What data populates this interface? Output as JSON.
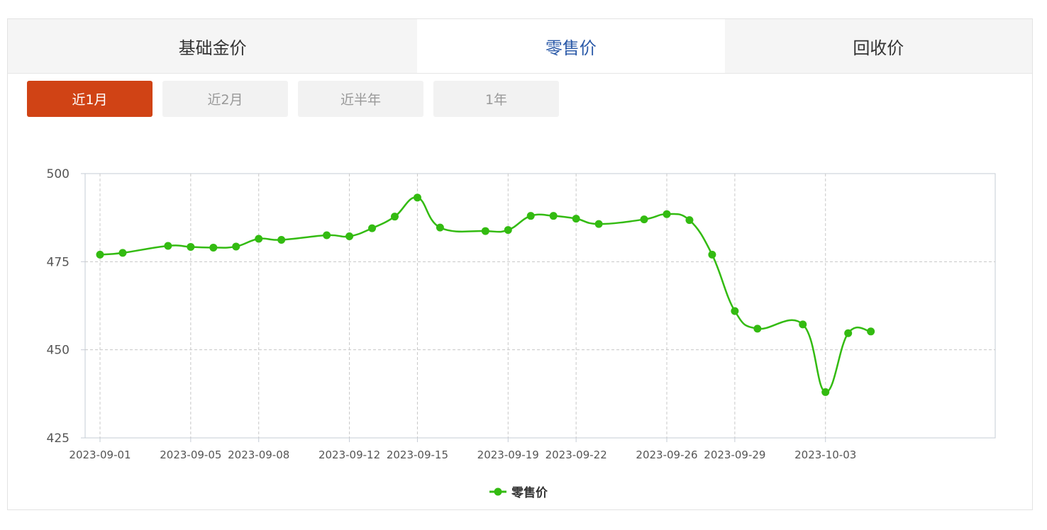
{
  "tabs": [
    {
      "label": "基础金价",
      "active": false
    },
    {
      "label": "零售价",
      "active": true
    },
    {
      "label": "回收价",
      "active": false
    }
  ],
  "ranges": [
    {
      "label": "近1月",
      "active": true
    },
    {
      "label": "近2月",
      "active": false
    },
    {
      "label": "近半年",
      "active": false
    },
    {
      "label": "1年",
      "active": false
    }
  ],
  "colors": {
    "series": "#33bb11",
    "active_range": "#d04315",
    "active_tab_text": "#2b5aa8"
  },
  "chart_data": {
    "type": "line",
    "title": "",
    "xlabel": "",
    "ylabel": "",
    "ylim": [
      425,
      500
    ],
    "yticks": [
      425,
      450,
      475,
      500
    ],
    "xticks": [
      "2023-09-01",
      "2023-09-05",
      "2023-09-08",
      "2023-09-12",
      "2023-09-15",
      "2023-09-19",
      "2023-09-22",
      "2023-09-26",
      "2023-09-29",
      "2023-10-03"
    ],
    "grid": true,
    "legend": "bottom-center",
    "x": [
      "2023-09-01",
      "2023-09-02",
      "2023-09-04",
      "2023-09-05",
      "2023-09-06",
      "2023-09-07",
      "2023-09-08",
      "2023-09-09",
      "2023-09-11",
      "2023-09-12",
      "2023-09-13",
      "2023-09-14",
      "2023-09-15",
      "2023-09-16",
      "2023-09-18",
      "2023-09-19",
      "2023-09-20",
      "2023-09-21",
      "2023-09-22",
      "2023-09-23",
      "2023-09-25",
      "2023-09-26",
      "2023-09-27",
      "2023-09-28",
      "2023-09-29",
      "2023-09-30",
      "2023-10-02",
      "2023-10-03",
      "2023-10-04",
      "2023-10-05"
    ],
    "series": [
      {
        "name": "零售价",
        "values": [
          477,
          477.5,
          479.5,
          479.2,
          479,
          479.3,
          481.5,
          481.2,
          482.5,
          482.2,
          484.5,
          487.8,
          493.2,
          484.7,
          483.7,
          484,
          488,
          488,
          487.2,
          485.7,
          487,
          488.5,
          486.8,
          477,
          461,
          456,
          457.2,
          438,
          454.7,
          455.2
        ]
      }
    ]
  }
}
